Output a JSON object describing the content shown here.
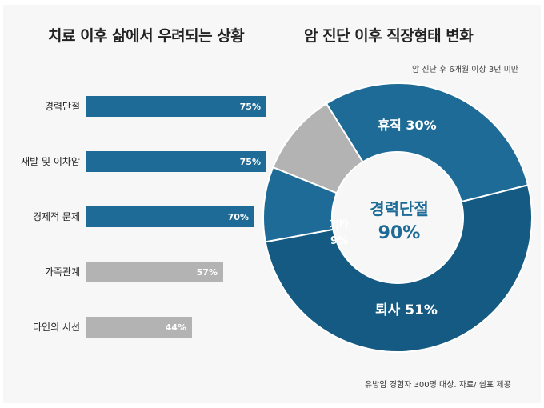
{
  "left_title": "치료 이후 삶에서 우려되는 상황",
  "right_title": "암 진단 이후 직장형태 변화",
  "right_subtitle": "암 진단 후 6개월 이상 3년 미만",
  "footnote": "유방암 경험자 300명 대상. 자료/ 쉼표 제공",
  "colors": {
    "blue": "#1d6b96",
    "dark_blue": "#145a82",
    "gray": "#b3b3b3",
    "panel": "#f7f7f7"
  },
  "chart_data": [
    {
      "type": "bar",
      "orientation": "horizontal",
      "title": "치료 이후 삶에서 우려되는 상황",
      "categories": [
        "경력단절",
        "재발 및 이차암",
        "경제적 문제",
        "가족관계",
        "타인의 시선"
      ],
      "values": [
        75,
        75,
        70,
        57,
        44
      ],
      "value_labels": [
        "75%",
        "75%",
        "70%",
        "57%",
        "44%"
      ],
      "highlight": [
        true,
        true,
        true,
        false,
        false
      ],
      "xlim": [
        0,
        100
      ],
      "grid": false
    },
    {
      "type": "pie",
      "donut": true,
      "title": "암 진단 이후 직장형태 변화",
      "subtitle": "암 진단 후 6개월 이상 3년 미만",
      "center_label": [
        "경력단절",
        "90%"
      ],
      "slices": [
        {
          "label": "휴직 30%",
          "value": 30,
          "color": "#1d6b96"
        },
        {
          "label": "퇴사 51%",
          "value": 51,
          "color": "#145a82"
        },
        {
          "label": "기타 9%",
          "value": 9,
          "color": "#1d6b96"
        },
        {
          "label": "",
          "value": 10,
          "color": "#b3b3b3"
        }
      ]
    }
  ]
}
